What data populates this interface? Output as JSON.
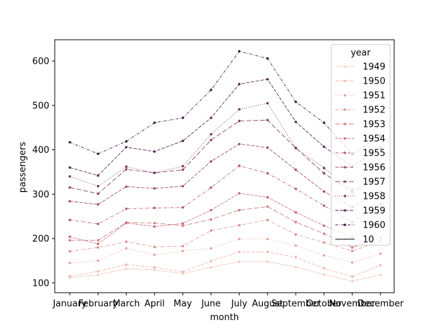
{
  "chart_data": {
    "type": "line",
    "xlabel": "month",
    "ylabel": "passengers",
    "categories": [
      "January",
      "February",
      "March",
      "April",
      "May",
      "June",
      "July",
      "August",
      "September",
      "October",
      "November",
      "December"
    ],
    "ylim": [
      78,
      648
    ],
    "yticks": [
      100,
      200,
      300,
      400,
      500,
      600
    ],
    "grid": false,
    "legend": {
      "title": "year",
      "placement": "top-right",
      "size_label": "10"
    },
    "series": [
      {
        "name": "1949",
        "color": "#f1d0c6",
        "dash": "solid",
        "values": [
          112,
          118,
          132,
          129,
          121,
          135,
          148,
          148,
          136,
          119,
          104,
          118
        ]
      },
      {
        "name": "1950",
        "color": "#ebbbb4",
        "dash": "dashed",
        "values": [
          115,
          126,
          141,
          135,
          125,
          149,
          170,
          170,
          158,
          133,
          114,
          140
        ]
      },
      {
        "name": "1951",
        "color": "#e4a6a2",
        "dash": "dotted",
        "values": [
          145,
          150,
          178,
          163,
          172,
          178,
          199,
          199,
          184,
          162,
          146,
          166
        ]
      },
      {
        "name": "1952",
        "color": "#dc9290",
        "dash": "dashdot",
        "values": [
          171,
          180,
          193,
          181,
          183,
          218,
          230,
          242,
          209,
          191,
          172,
          194
        ]
      },
      {
        "name": "1953",
        "color": "#d27e81",
        "dash": "long",
        "values": [
          196,
          196,
          236,
          235,
          229,
          243,
          264,
          272,
          237,
          211,
          180,
          201
        ]
      },
      {
        "name": "1954",
        "color": "#c66c77",
        "dash": "mixed",
        "values": [
          204,
          188,
          235,
          227,
          234,
          264,
          302,
          293,
          259,
          229,
          203,
          229
        ]
      },
      {
        "name": "1955",
        "color": "#b65c71",
        "dash": "dashdot",
        "values": [
          242,
          233,
          267,
          269,
          270,
          315,
          364,
          347,
          312,
          274,
          237,
          278
        ]
      },
      {
        "name": "1956",
        "color": "#a24f6d",
        "dash": "dashed",
        "values": [
          284,
          277,
          317,
          313,
          318,
          374,
          413,
          405,
          355,
          306,
          271,
          306
        ]
      },
      {
        "name": "1957",
        "color": "#8c4368",
        "dash": "long",
        "values": [
          315,
          301,
          356,
          348,
          355,
          422,
          465,
          467,
          404,
          347,
          305,
          336
        ]
      },
      {
        "name": "1958",
        "color": "#743860",
        "dash": "dotted",
        "values": [
          340,
          318,
          362,
          348,
          363,
          435,
          491,
          505,
          404,
          359,
          310,
          337
        ]
      },
      {
        "name": "1959",
        "color": "#5b2c53",
        "dash": "dashed",
        "values": [
          360,
          342,
          406,
          396,
          420,
          472,
          548,
          559,
          463,
          407,
          362,
          405
        ]
      },
      {
        "name": "1960",
        "color": "#3f1f42",
        "dash": "dashdot",
        "values": [
          417,
          391,
          419,
          461,
          472,
          535,
          622,
          606,
          508,
          461,
          390,
          432
        ]
      }
    ]
  }
}
